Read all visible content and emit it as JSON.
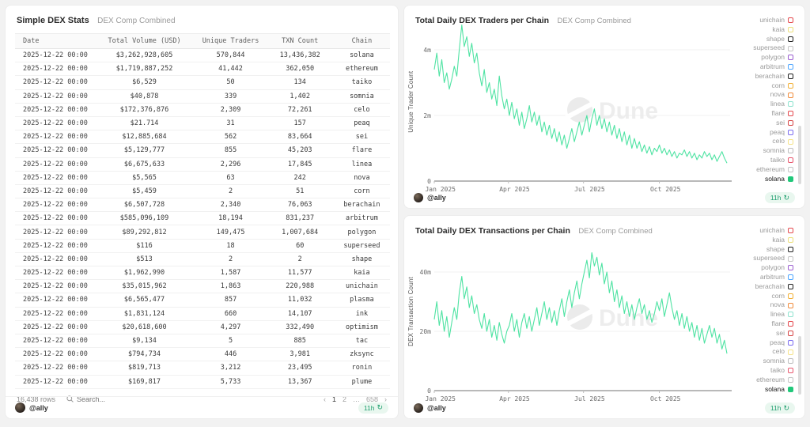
{
  "left_panel": {
    "title": "Simple DEX Stats",
    "subtitle": "DEX Comp Combined",
    "table": {
      "columns": [
        "Date",
        "Total Volume (USD)",
        "Unique Traders",
        "TXN Count",
        "Chain"
      ],
      "rows": [
        [
          "2025-12-22 00:00",
          "$3,262,928,605",
          "570,844",
          "13,436,382",
          "solana"
        ],
        [
          "2025-12-22 00:00",
          "$1,719,887,252",
          "41,442",
          "362,050",
          "ethereum"
        ],
        [
          "2025-12-22 00:00",
          "$6,529",
          "50",
          "134",
          "taiko"
        ],
        [
          "2025-12-22 00:00",
          "$40,878",
          "339",
          "1,402",
          "somnia"
        ],
        [
          "2025-12-22 00:00",
          "$172,376,876",
          "2,309",
          "72,261",
          "celo"
        ],
        [
          "2025-12-22 00:00",
          "$21.714",
          "31",
          "157",
          "peaq"
        ],
        [
          "2025-12-22 00:00",
          "$12,885,684",
          "562",
          "83,664",
          "sei"
        ],
        [
          "2025-12-22 00:00",
          "$5,129,777",
          "855",
          "45,203",
          "flare"
        ],
        [
          "2025-12-22 00:00",
          "$6,675,633",
          "2,296",
          "17,845",
          "linea"
        ],
        [
          "2025-12-22 00:00",
          "$5,565",
          "63",
          "242",
          "nova"
        ],
        [
          "2025-12-22 00:00",
          "$5,459",
          "2",
          "51",
          "corn"
        ],
        [
          "2025-12-22 00:00",
          "$6,507,728",
          "2,340",
          "76,063",
          "berachain"
        ],
        [
          "2025-12-22 00:00",
          "$585,096,109",
          "18,194",
          "831,237",
          "arbitrum"
        ],
        [
          "2025-12-22 00:00",
          "$89,292,812",
          "149,475",
          "1,007,684",
          "polygon"
        ],
        [
          "2025-12-22 00:00",
          "$116",
          "18",
          "60",
          "superseed"
        ],
        [
          "2025-12-22 00:00",
          "$513",
          "2",
          "2",
          "shape"
        ],
        [
          "2025-12-22 00:00",
          "$1,962,990",
          "1,587",
          "11,577",
          "kaia"
        ],
        [
          "2025-12-22 00:00",
          "$35,015,962",
          "1,863",
          "220,988",
          "unichain"
        ],
        [
          "2025-12-22 00:00",
          "$6,565,477",
          "857",
          "11,032",
          "plasma"
        ],
        [
          "2025-12-22 00:00",
          "$1,831,124",
          "660",
          "14,107",
          "ink"
        ],
        [
          "2025-12-22 00:00",
          "$20,618,600",
          "4,297",
          "332,490",
          "optimism"
        ],
        [
          "2025-12-22 00:00",
          "$9,134",
          "5",
          "885",
          "tac"
        ],
        [
          "2025-12-22 00:00",
          "$794,734",
          "446",
          "3,981",
          "zksync"
        ],
        [
          "2025-12-22 00:00",
          "$819,713",
          "3,212",
          "23,495",
          "ronin"
        ],
        [
          "2025-12-22 00:00",
          "$169,817",
          "5,733",
          "13,367",
          "plume"
        ]
      ]
    },
    "footer": {
      "row_count": "16,438 rows",
      "search_placeholder": "Search...",
      "pagination": {
        "prev": "‹",
        "pages": [
          "1",
          "2",
          "…",
          "658"
        ],
        "current": "1",
        "next": "›"
      }
    },
    "author": "@ally",
    "refresh_badge": "11h"
  },
  "watermark": "Dune",
  "legend": {
    "active": "solana",
    "items": [
      {
        "label": "unichain",
        "color": "#e5484d"
      },
      {
        "label": "kaia",
        "color": "#ecdf7a"
      },
      {
        "label": "shape",
        "color": "#1f1f1f"
      },
      {
        "label": "superseed",
        "color": "#c4c4c4"
      },
      {
        "label": "polygon",
        "color": "#9a5cd0"
      },
      {
        "label": "arbitrum",
        "color": "#4da6ff"
      },
      {
        "label": "berachain",
        "color": "#1f1f1f"
      },
      {
        "label": "corn",
        "color": "#f2b035"
      },
      {
        "label": "nova",
        "color": "#f08c3c"
      },
      {
        "label": "linea",
        "color": "#8fe3cf"
      },
      {
        "label": "flare",
        "color": "#e5484d"
      },
      {
        "label": "sei",
        "color": "#d64545"
      },
      {
        "label": "peaq",
        "color": "#7b6cf0"
      },
      {
        "label": "celo",
        "color": "#f5e38a"
      },
      {
        "label": "somnia",
        "color": "#bdbdbd"
      },
      {
        "label": "taiko",
        "color": "#e8566d"
      },
      {
        "label": "ethereum",
        "color": "#c4c4c4"
      },
      {
        "label": "solana",
        "color": "#21c87a"
      }
    ]
  },
  "charts": [
    {
      "title": "Total Daily DEX Traders per Chain",
      "subtitle": "DEX Comp Combined",
      "ylabel": "Unique Trader Count",
      "yticks": [
        {
          "label": "4m",
          "value": 4
        },
        {
          "label": "2m",
          "value": 2
        },
        {
          "label": "0",
          "value": 0
        }
      ],
      "xticks": [
        "Jan 2025",
        "Apr 2025",
        "Jul 2025",
        "Oct 2025"
      ],
      "author": "@ally",
      "refresh_badge": "11h"
    },
    {
      "title": "Total Daily DEX Transactions per Chain",
      "subtitle": "DEX Comp Combined",
      "ylabel": "DEX Transaction Count",
      "yticks": [
        {
          "label": "40m",
          "value": 40
        },
        {
          "label": "20m",
          "value": 20
        },
        {
          "label": "0",
          "value": 0
        }
      ],
      "xticks": [
        "Jan 2025",
        "Apr 2025",
        "Jul 2025",
        "Oct 2025"
      ],
      "author": "@ally",
      "refresh_badge": "11h"
    }
  ],
  "chart_data": [
    {
      "type": "line",
      "title": "Total Daily DEX Traders per Chain",
      "ylabel": "Unique Trader Count",
      "unit": "millions",
      "x_range": [
        "Jan 2025",
        "Dec 2025"
      ],
      "ylim": [
        0,
        4.8
      ],
      "series": [
        {
          "name": "solana",
          "color": "#4fe3a3",
          "values": [
            3.4,
            3.9,
            3.2,
            3.7,
            3.0,
            3.3,
            2.8,
            3.1,
            3.5,
            3.2,
            4.0,
            4.76,
            4.1,
            4.4,
            3.8,
            4.2,
            3.6,
            3.9,
            3.3,
            2.9,
            3.4,
            2.7,
            3.0,
            2.5,
            2.8,
            2.3,
            3.2,
            2.6,
            2.2,
            2.5,
            2.0,
            2.4,
            1.9,
            2.2,
            1.7,
            2.1,
            1.6,
            1.9,
            2.3,
            1.8,
            2.1,
            1.7,
            2.0,
            1.5,
            1.8,
            1.4,
            1.7,
            1.3,
            1.6,
            1.2,
            1.5,
            1.1,
            1.4,
            1.0,
            1.3,
            1.6,
            1.2,
            1.5,
            1.8,
            1.4,
            1.7,
            2.0,
            1.5,
            1.9,
            2.2,
            1.7,
            2.0,
            1.6,
            1.9,
            1.5,
            1.8,
            1.4,
            1.7,
            1.3,
            1.6,
            1.2,
            1.5,
            1.1,
            1.4,
            1.0,
            1.3,
            1.0,
            1.2,
            0.9,
            1.1,
            0.85,
            1.05,
            0.8,
            1.0,
            0.9,
            1.1,
            0.85,
            1.0,
            0.8,
            0.95,
            0.75,
            0.9,
            0.7,
            0.85,
            0.8,
            0.95,
            0.75,
            0.9,
            0.7,
            0.85,
            0.65,
            0.8,
            0.7,
            0.9,
            0.75,
            0.85,
            0.65,
            0.8,
            0.6,
            0.75,
            0.9,
            0.7,
            0.55
          ]
        }
      ]
    },
    {
      "type": "line",
      "title": "Total Daily DEX Transactions per Chain",
      "ylabel": "DEX Transaction Count",
      "unit": "millions",
      "x_range": [
        "Jan 2025",
        "Dec 2025"
      ],
      "ylim": [
        0,
        48
      ],
      "series": [
        {
          "name": "solana",
          "color": "#4fe3a3",
          "values": [
            24,
            30,
            22,
            27,
            20,
            25,
            18,
            23,
            28,
            24,
            33,
            38.5,
            31,
            35,
            28,
            32,
            26,
            29,
            24,
            21,
            26,
            20,
            24,
            18,
            22,
            17,
            23,
            19,
            16,
            20,
            22,
            26,
            20,
            24,
            18,
            23,
            26,
            21,
            25,
            20,
            24,
            28,
            22,
            26,
            30,
            24,
            28,
            23,
            27,
            22,
            27,
            31,
            25,
            30,
            34,
            28,
            33,
            37,
            31,
            36,
            40,
            44,
            38,
            46.5,
            42,
            45,
            39,
            43,
            36,
            40,
            33,
            37,
            30,
            34,
            28,
            32,
            26,
            30,
            25,
            29,
            24,
            28,
            31,
            26,
            29,
            24,
            27,
            23,
            26,
            30,
            27,
            31,
            25,
            29,
            33,
            28,
            24,
            27,
            22,
            26,
            21,
            25,
            20,
            23,
            18,
            22,
            17,
            21,
            16,
            19,
            22,
            18,
            21,
            16,
            19,
            14,
            17,
            12.5
          ]
        }
      ]
    }
  ]
}
